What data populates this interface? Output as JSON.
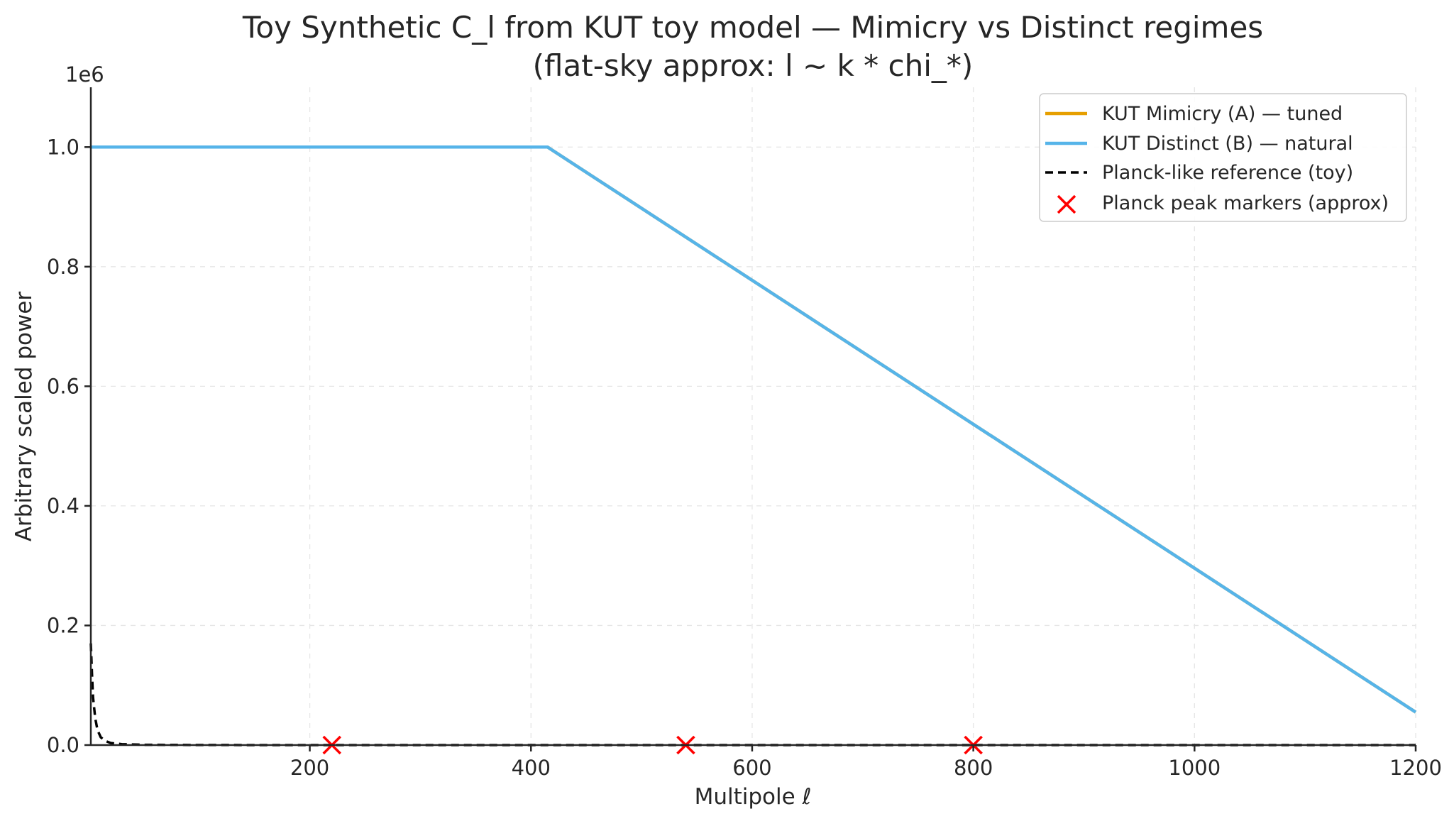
{
  "chart_data": {
    "type": "line",
    "title": "Toy Synthetic C_l from KUT toy model — Mimicry vs Distinct regimes",
    "subtitle": "(flat-sky approx: l ~ k * chi_*)",
    "xlabel": "Multipole ℓ",
    "ylabel": "Arbitrary scaled power",
    "y_offset_label": "1e6",
    "xlim": [
      2,
      1200
    ],
    "ylim": [
      0,
      1100000
    ],
    "x_ticks": [
      200,
      400,
      600,
      800,
      1000,
      1200
    ],
    "x_tick_labels": [
      "200",
      "400",
      "600",
      "800",
      "1000",
      "1200"
    ],
    "y_ticks": [
      0,
      200000,
      400000,
      600000,
      800000,
      1000000
    ],
    "y_tick_labels": [
      "0.0",
      "0.2",
      "0.4",
      "0.6",
      "0.8",
      "1.0"
    ],
    "grid": true,
    "legend_position": "top-right",
    "series": [
      {
        "name": "KUT Mimicry (A) — tuned",
        "style": "solid",
        "color": "#E69F00",
        "x": [
          2,
          415,
          1200
        ],
        "y": [
          1000000,
          1000000,
          55000
        ]
      },
      {
        "name": "KUT Distinct (B) — natural",
        "style": "solid",
        "color": "#56B4E9",
        "x": [
          2,
          415,
          1200
        ],
        "y": [
          1000000,
          1000000,
          55000
        ]
      },
      {
        "name": "Planck-like reference (toy)",
        "style": "dashed",
        "color": "#000000",
        "x": [
          2,
          3,
          4,
          6,
          8,
          11,
          15,
          20,
          30,
          50,
          100,
          200,
          400,
          600,
          800,
          1000,
          1200
        ],
        "y": [
          170000,
          120000,
          80000,
          45000,
          25000,
          13000,
          7000,
          3500,
          1500,
          500,
          100,
          0,
          0,
          0,
          0,
          0,
          0
        ]
      }
    ],
    "markers": {
      "name": "Planck peak markers (approx)",
      "symbol": "x",
      "color": "#FF0000",
      "x": [
        220,
        540,
        800
      ],
      "y": [
        0,
        0,
        0
      ]
    }
  }
}
